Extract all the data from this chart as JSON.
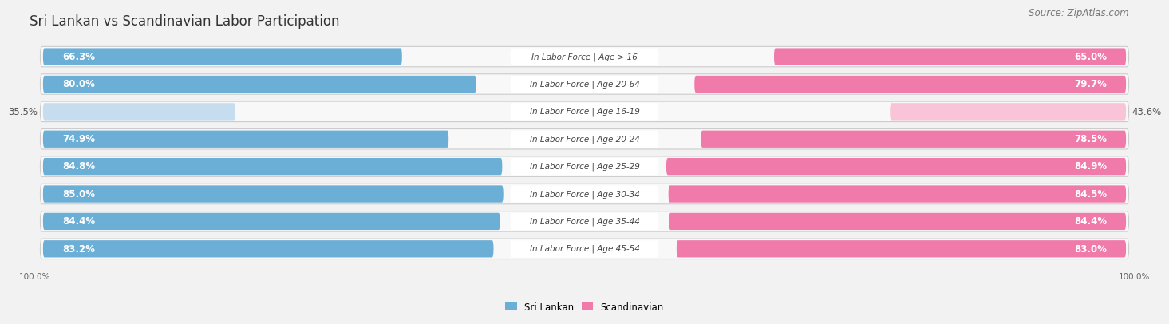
{
  "title": "Sri Lankan vs Scandinavian Labor Participation",
  "source": "Source: ZipAtlas.com",
  "categories": [
    "In Labor Force | Age > 16",
    "In Labor Force | Age 20-64",
    "In Labor Force | Age 16-19",
    "In Labor Force | Age 20-24",
    "In Labor Force | Age 25-29",
    "In Labor Force | Age 30-34",
    "In Labor Force | Age 35-44",
    "In Labor Force | Age 45-54"
  ],
  "sri_lankan": [
    66.3,
    80.0,
    35.5,
    74.9,
    84.8,
    85.0,
    84.4,
    83.2
  ],
  "scandinavian": [
    65.0,
    79.7,
    43.6,
    78.5,
    84.9,
    84.5,
    84.4,
    83.0
  ],
  "sri_lankan_color_strong": "#6baed6",
  "sri_lankan_color_light": "#c6dcef",
  "scandinavian_color_strong": "#f07aaa",
  "scandinavian_color_light": "#f9c4d8",
  "bg_color": "#f2f2f2",
  "row_bg_color": "#e8e8e8",
  "row_bg_inner": "#f8f8f8",
  "label_bg_color": "#ffffff",
  "max_value": 100.0,
  "legend_sri_lankan": "Sri Lankan",
  "legend_scandinavian": "Scandinavian",
  "title_fontsize": 12,
  "source_fontsize": 8.5,
  "bar_label_fontsize": 8.5,
  "category_fontsize": 7.5,
  "low_threshold": 60
}
